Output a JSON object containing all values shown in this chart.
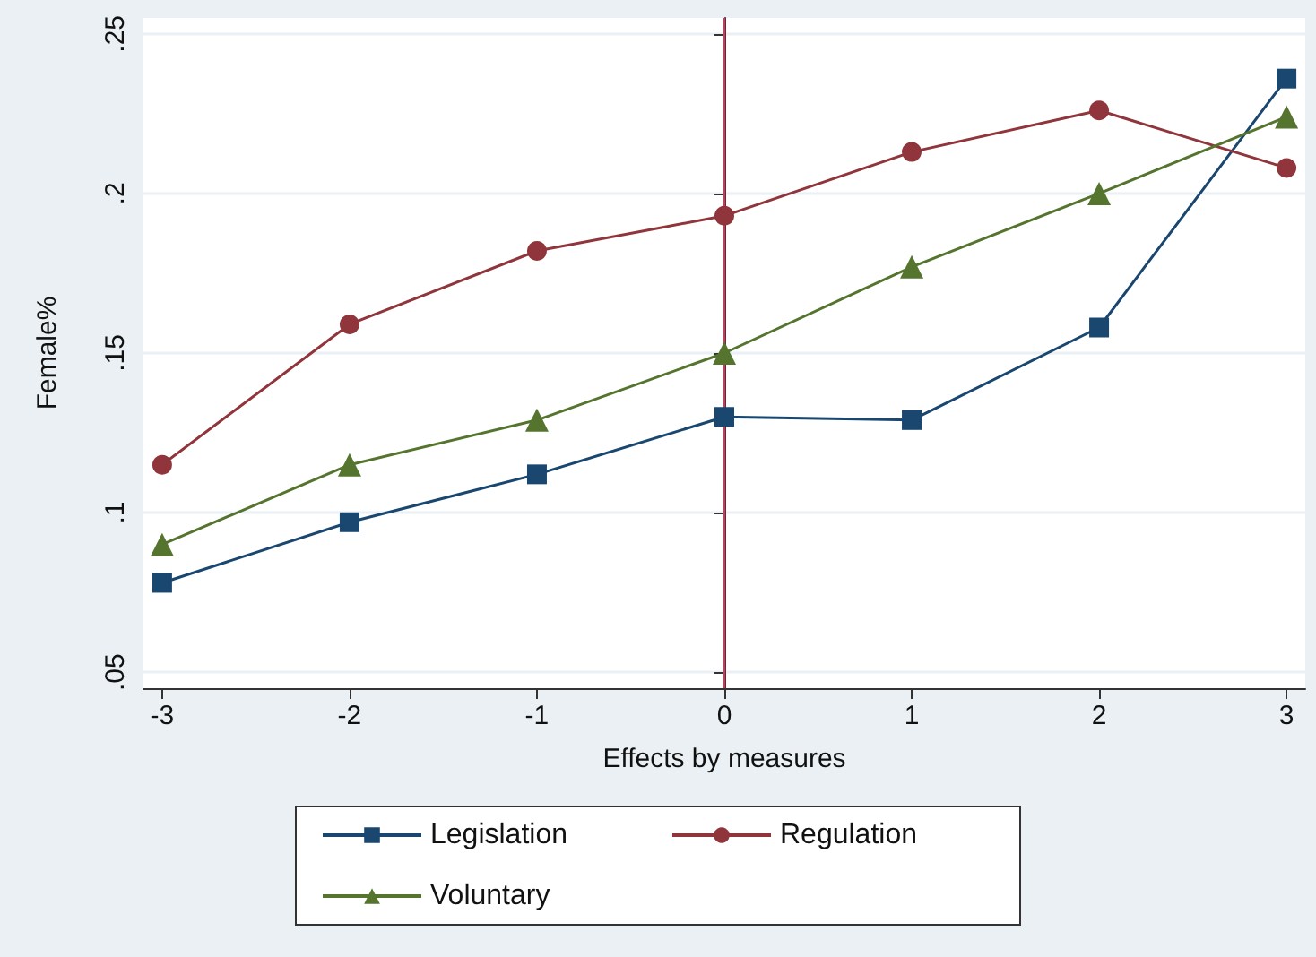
{
  "chart_data": {
    "type": "line",
    "xlabel": "Effects by measures",
    "ylabel": "Female%",
    "x": [
      -3,
      -2,
      -1,
      0,
      1,
      2,
      3
    ],
    "series": [
      {
        "name": "Legislation",
        "color": "#1a476f",
        "marker": "square",
        "values": [
          0.078,
          0.097,
          0.112,
          0.13,
          0.129,
          0.158,
          0.236
        ]
      },
      {
        "name": "Regulation",
        "color": "#90353b",
        "marker": "circle",
        "values": [
          0.115,
          0.159,
          0.182,
          0.193,
          0.213,
          0.226,
          0.208
        ]
      },
      {
        "name": "Voluntary",
        "color": "#55752f",
        "marker": "triangle",
        "values": [
          0.09,
          0.115,
          0.129,
          0.15,
          0.177,
          0.2,
          0.224
        ]
      }
    ],
    "xlim": [
      -3.1,
      3.1
    ],
    "xticks": [
      -3,
      -2,
      -1,
      0,
      1,
      2,
      3
    ],
    "ylim": [
      0.045,
      0.255
    ],
    "yticks": [
      {
        "value": 0.05,
        "label": ".05"
      },
      {
        "value": 0.1,
        "label": ".1"
      },
      {
        "value": 0.15,
        "label": ".15"
      },
      {
        "value": 0.2,
        "label": ".2"
      },
      {
        "value": 0.25,
        "label": ".25"
      }
    ],
    "ref_lines": [
      {
        "axis": "x",
        "value": 0,
        "color": "#d1375a"
      }
    ],
    "grid": "y",
    "legend": "bottom"
  }
}
